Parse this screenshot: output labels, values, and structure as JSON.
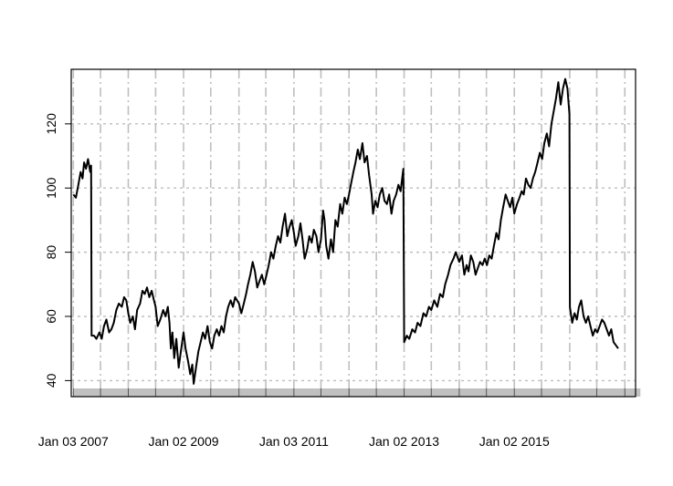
{
  "chart_data": {
    "type": "line",
    "title": "",
    "xlabel": "",
    "ylabel": "",
    "ylim": [
      35,
      137
    ],
    "xlim": [
      "2006-12-20",
      "2017-03-15"
    ],
    "y_ticks": [
      "40",
      "60",
      "80",
      "100",
      "120"
    ],
    "x_tick_labels": [
      {
        "date": "2007-01-03",
        "label": "Jan 03 2007"
      },
      {
        "date": "2009-01-02",
        "label": "Jan 02 2009"
      },
      {
        "date": "2011-01-03",
        "label": "Jan 03 2011"
      },
      {
        "date": "2013-01-02",
        "label": "Jan 02 2013"
      },
      {
        "date": "2015-01-02",
        "label": "Jan 02 2015"
      }
    ],
    "vertical_gridlines": [
      "2007-01-03",
      "2007-07-02",
      "2008-01-02",
      "2008-07-01",
      "2009-01-02",
      "2009-07-01",
      "2010-01-04",
      "2010-07-01",
      "2011-01-03",
      "2011-07-01",
      "2012-01-03",
      "2012-07-02",
      "2013-01-02",
      "2013-07-01",
      "2014-01-02",
      "2014-07-01",
      "2015-01-02",
      "2015-07-01",
      "2016-01-04",
      "2016-07-01",
      "2017-01-03"
    ],
    "grid": true,
    "grid_color": "#bfbfbf",
    "line_color": "#000000",
    "series": [
      {
        "points": [
          [
            "2007-01-03",
            98
          ],
          [
            "2007-01-20",
            97
          ],
          [
            "2007-02-05",
            101
          ],
          [
            "2007-02-20",
            105
          ],
          [
            "2007-03-05",
            103
          ],
          [
            "2007-03-15",
            108
          ],
          [
            "2007-03-28",
            106
          ],
          [
            "2007-04-10",
            109
          ],
          [
            "2007-04-25",
            105
          ],
          [
            "2007-05-01",
            107
          ],
          [
            "2007-05-04",
            54
          ],
          [
            "2007-05-20",
            54
          ],
          [
            "2007-06-05",
            53
          ],
          [
            "2007-06-25",
            55
          ],
          [
            "2007-07-10",
            53
          ],
          [
            "2007-07-25",
            57
          ],
          [
            "2007-08-10",
            59
          ],
          [
            "2007-08-28",
            55
          ],
          [
            "2007-09-12",
            56
          ],
          [
            "2007-09-28",
            58
          ],
          [
            "2007-10-15",
            62
          ],
          [
            "2007-11-01",
            64
          ],
          [
            "2007-11-20",
            63
          ],
          [
            "2007-12-05",
            66
          ],
          [
            "2007-12-20",
            65
          ],
          [
            "2008-01-02",
            61
          ],
          [
            "2008-01-15",
            58
          ],
          [
            "2008-02-01",
            60
          ],
          [
            "2008-02-15",
            56
          ],
          [
            "2008-03-01",
            62
          ],
          [
            "2008-03-20",
            64
          ],
          [
            "2008-04-05",
            68
          ],
          [
            "2008-04-20",
            67
          ],
          [
            "2008-05-05",
            69
          ],
          [
            "2008-05-20",
            66
          ],
          [
            "2008-06-05",
            68
          ],
          [
            "2008-06-20",
            65
          ],
          [
            "2008-07-01",
            63
          ],
          [
            "2008-07-15",
            57
          ],
          [
            "2008-08-01",
            59
          ],
          [
            "2008-08-20",
            62
          ],
          [
            "2008-09-05",
            60
          ],
          [
            "2008-09-20",
            63
          ],
          [
            "2008-10-01",
            58
          ],
          [
            "2008-10-10",
            50
          ],
          [
            "2008-10-20",
            55
          ],
          [
            "2008-11-01",
            47
          ],
          [
            "2008-11-15",
            53
          ],
          [
            "2008-12-01",
            44
          ],
          [
            "2008-12-15",
            49
          ],
          [
            "2009-01-02",
            55
          ],
          [
            "2009-01-15",
            50
          ],
          [
            "2009-02-01",
            46
          ],
          [
            "2009-02-15",
            42
          ],
          [
            "2009-03-01",
            45
          ],
          [
            "2009-03-10",
            39
          ],
          [
            "2009-03-25",
            44
          ],
          [
            "2009-04-10",
            49
          ],
          [
            "2009-04-25",
            52
          ],
          [
            "2009-05-10",
            55
          ],
          [
            "2009-05-25",
            53
          ],
          [
            "2009-06-10",
            57
          ],
          [
            "2009-06-25",
            52
          ],
          [
            "2009-07-10",
            50
          ],
          [
            "2009-07-25",
            54
          ],
          [
            "2009-08-10",
            56
          ],
          [
            "2009-08-25",
            54
          ],
          [
            "2009-09-10",
            57
          ],
          [
            "2009-09-25",
            55
          ],
          [
            "2009-10-10",
            60
          ],
          [
            "2009-10-25",
            63
          ],
          [
            "2009-11-10",
            65
          ],
          [
            "2009-11-25",
            63
          ],
          [
            "2009-12-10",
            66
          ],
          [
            "2010-01-04",
            64
          ],
          [
            "2010-01-20",
            61
          ],
          [
            "2010-02-05",
            64
          ],
          [
            "2010-02-20",
            67
          ],
          [
            "2010-03-05",
            70
          ],
          [
            "2010-03-20",
            73
          ],
          [
            "2010-04-05",
            77
          ],
          [
            "2010-04-20",
            74
          ],
          [
            "2010-05-05",
            69
          ],
          [
            "2010-05-20",
            71
          ],
          [
            "2010-06-05",
            73
          ],
          [
            "2010-06-20",
            70
          ],
          [
            "2010-07-01",
            72
          ],
          [
            "2010-07-20",
            76
          ],
          [
            "2010-08-05",
            80
          ],
          [
            "2010-08-20",
            78
          ],
          [
            "2010-09-05",
            82
          ],
          [
            "2010-09-20",
            85
          ],
          [
            "2010-10-05",
            83
          ],
          [
            "2010-10-20",
            88
          ],
          [
            "2010-11-05",
            92
          ],
          [
            "2010-11-20",
            85
          ],
          [
            "2010-12-05",
            88
          ],
          [
            "2010-12-20",
            90
          ],
          [
            "2011-01-03",
            86
          ],
          [
            "2011-01-15",
            82
          ],
          [
            "2011-02-01",
            85
          ],
          [
            "2011-02-15",
            89
          ],
          [
            "2011-03-01",
            84
          ],
          [
            "2011-03-15",
            78
          ],
          [
            "2011-04-01",
            81
          ],
          [
            "2011-04-15",
            85
          ],
          [
            "2011-05-01",
            83
          ],
          [
            "2011-05-15",
            87
          ],
          [
            "2011-06-01",
            85
          ],
          [
            "2011-06-15",
            80
          ],
          [
            "2011-07-01",
            84
          ],
          [
            "2011-07-15",
            93
          ],
          [
            "2011-07-25",
            90
          ],
          [
            "2011-08-05",
            82
          ],
          [
            "2011-08-20",
            78
          ],
          [
            "2011-09-05",
            84
          ],
          [
            "2011-09-20",
            80
          ],
          [
            "2011-10-05",
            90
          ],
          [
            "2011-10-20",
            88
          ],
          [
            "2011-11-05",
            95
          ],
          [
            "2011-11-20",
            92
          ],
          [
            "2011-12-05",
            97
          ],
          [
            "2011-12-20",
            95
          ],
          [
            "2012-01-03",
            98
          ],
          [
            "2012-01-15",
            101
          ],
          [
            "2012-02-01",
            105
          ],
          [
            "2012-02-15",
            108
          ],
          [
            "2012-03-01",
            112
          ],
          [
            "2012-03-15",
            109
          ],
          [
            "2012-04-01",
            114
          ],
          [
            "2012-04-15",
            108
          ],
          [
            "2012-05-01",
            110
          ],
          [
            "2012-05-15",
            104
          ],
          [
            "2012-06-01",
            98
          ],
          [
            "2012-06-10",
            92
          ],
          [
            "2012-06-25",
            96
          ],
          [
            "2012-07-10",
            94
          ],
          [
            "2012-07-25",
            98
          ],
          [
            "2012-08-10",
            100
          ],
          [
            "2012-08-25",
            96
          ],
          [
            "2012-09-10",
            95
          ],
          [
            "2012-09-25",
            98
          ],
          [
            "2012-10-10",
            92
          ],
          [
            "2012-10-25",
            96
          ],
          [
            "2012-11-10",
            98
          ],
          [
            "2012-11-25",
            101
          ],
          [
            "2012-12-10",
            99
          ],
          [
            "2012-12-28",
            106
          ],
          [
            "2013-01-02",
            52
          ],
          [
            "2013-01-20",
            54
          ],
          [
            "2013-02-05",
            53
          ],
          [
            "2013-02-25",
            56
          ],
          [
            "2013-03-15",
            55
          ],
          [
            "2013-04-01",
            58
          ],
          [
            "2013-04-20",
            57
          ],
          [
            "2013-05-10",
            61
          ],
          [
            "2013-05-28",
            60
          ],
          [
            "2013-06-15",
            63
          ],
          [
            "2013-07-01",
            62
          ],
          [
            "2013-07-20",
            65
          ],
          [
            "2013-08-10",
            63
          ],
          [
            "2013-08-28",
            67
          ],
          [
            "2013-09-15",
            66
          ],
          [
            "2013-10-01",
            70
          ],
          [
            "2013-10-20",
            73
          ],
          [
            "2013-11-05",
            76
          ],
          [
            "2013-11-25",
            78
          ],
          [
            "2013-12-10",
            80
          ],
          [
            "2014-01-02",
            77
          ],
          [
            "2014-01-20",
            79
          ],
          [
            "2014-02-05",
            73
          ],
          [
            "2014-02-20",
            76
          ],
          [
            "2014-03-05",
            74
          ],
          [
            "2014-03-20",
            79
          ],
          [
            "2014-04-05",
            77
          ],
          [
            "2014-04-20",
            73
          ],
          [
            "2014-05-05",
            75
          ],
          [
            "2014-05-20",
            77
          ],
          [
            "2014-06-05",
            76
          ],
          [
            "2014-06-20",
            78
          ],
          [
            "2014-07-05",
            76
          ],
          [
            "2014-07-20",
            79
          ],
          [
            "2014-08-05",
            78
          ],
          [
            "2014-08-20",
            82
          ],
          [
            "2014-09-05",
            86
          ],
          [
            "2014-09-20",
            84
          ],
          [
            "2014-10-05",
            90
          ],
          [
            "2014-10-20",
            94
          ],
          [
            "2014-11-05",
            98
          ],
          [
            "2014-11-20",
            96
          ],
          [
            "2014-12-05",
            94
          ],
          [
            "2014-12-20",
            97
          ],
          [
            "2015-01-02",
            92
          ],
          [
            "2015-01-20",
            95
          ],
          [
            "2015-02-05",
            97
          ],
          [
            "2015-02-20",
            99
          ],
          [
            "2015-03-05",
            98
          ],
          [
            "2015-03-20",
            103
          ],
          [
            "2015-04-05",
            101
          ],
          [
            "2015-04-20",
            100
          ],
          [
            "2015-05-05",
            103
          ],
          [
            "2015-05-20",
            105
          ],
          [
            "2015-06-05",
            108
          ],
          [
            "2015-06-20",
            111
          ],
          [
            "2015-07-05",
            109
          ],
          [
            "2015-07-20",
            114
          ],
          [
            "2015-08-05",
            117
          ],
          [
            "2015-08-20",
            113
          ],
          [
            "2015-09-05",
            120
          ],
          [
            "2015-09-20",
            124
          ],
          [
            "2015-10-05",
            128
          ],
          [
            "2015-10-20",
            133
          ],
          [
            "2015-11-05",
            126
          ],
          [
            "2015-11-20",
            131
          ],
          [
            "2015-12-05",
            134
          ],
          [
            "2015-12-20",
            131
          ],
          [
            "2016-01-02",
            123
          ],
          [
            "2016-01-05",
            63
          ],
          [
            "2016-01-20",
            58
          ],
          [
            "2016-02-05",
            61
          ],
          [
            "2016-02-20",
            59
          ],
          [
            "2016-03-05",
            63
          ],
          [
            "2016-03-20",
            65
          ],
          [
            "2016-04-05",
            60
          ],
          [
            "2016-04-20",
            58
          ],
          [
            "2016-05-05",
            60
          ],
          [
            "2016-05-20",
            57
          ],
          [
            "2016-06-05",
            54
          ],
          [
            "2016-06-20",
            56
          ],
          [
            "2016-07-05",
            55
          ],
          [
            "2016-07-20",
            57
          ],
          [
            "2016-08-05",
            59
          ],
          [
            "2016-08-20",
            58
          ],
          [
            "2016-09-05",
            56
          ],
          [
            "2016-09-20",
            54
          ],
          [
            "2016-10-05",
            56
          ],
          [
            "2016-10-20",
            52
          ],
          [
            "2016-11-05",
            51
          ],
          [
            "2016-11-20",
            50
          ]
        ]
      }
    ]
  }
}
